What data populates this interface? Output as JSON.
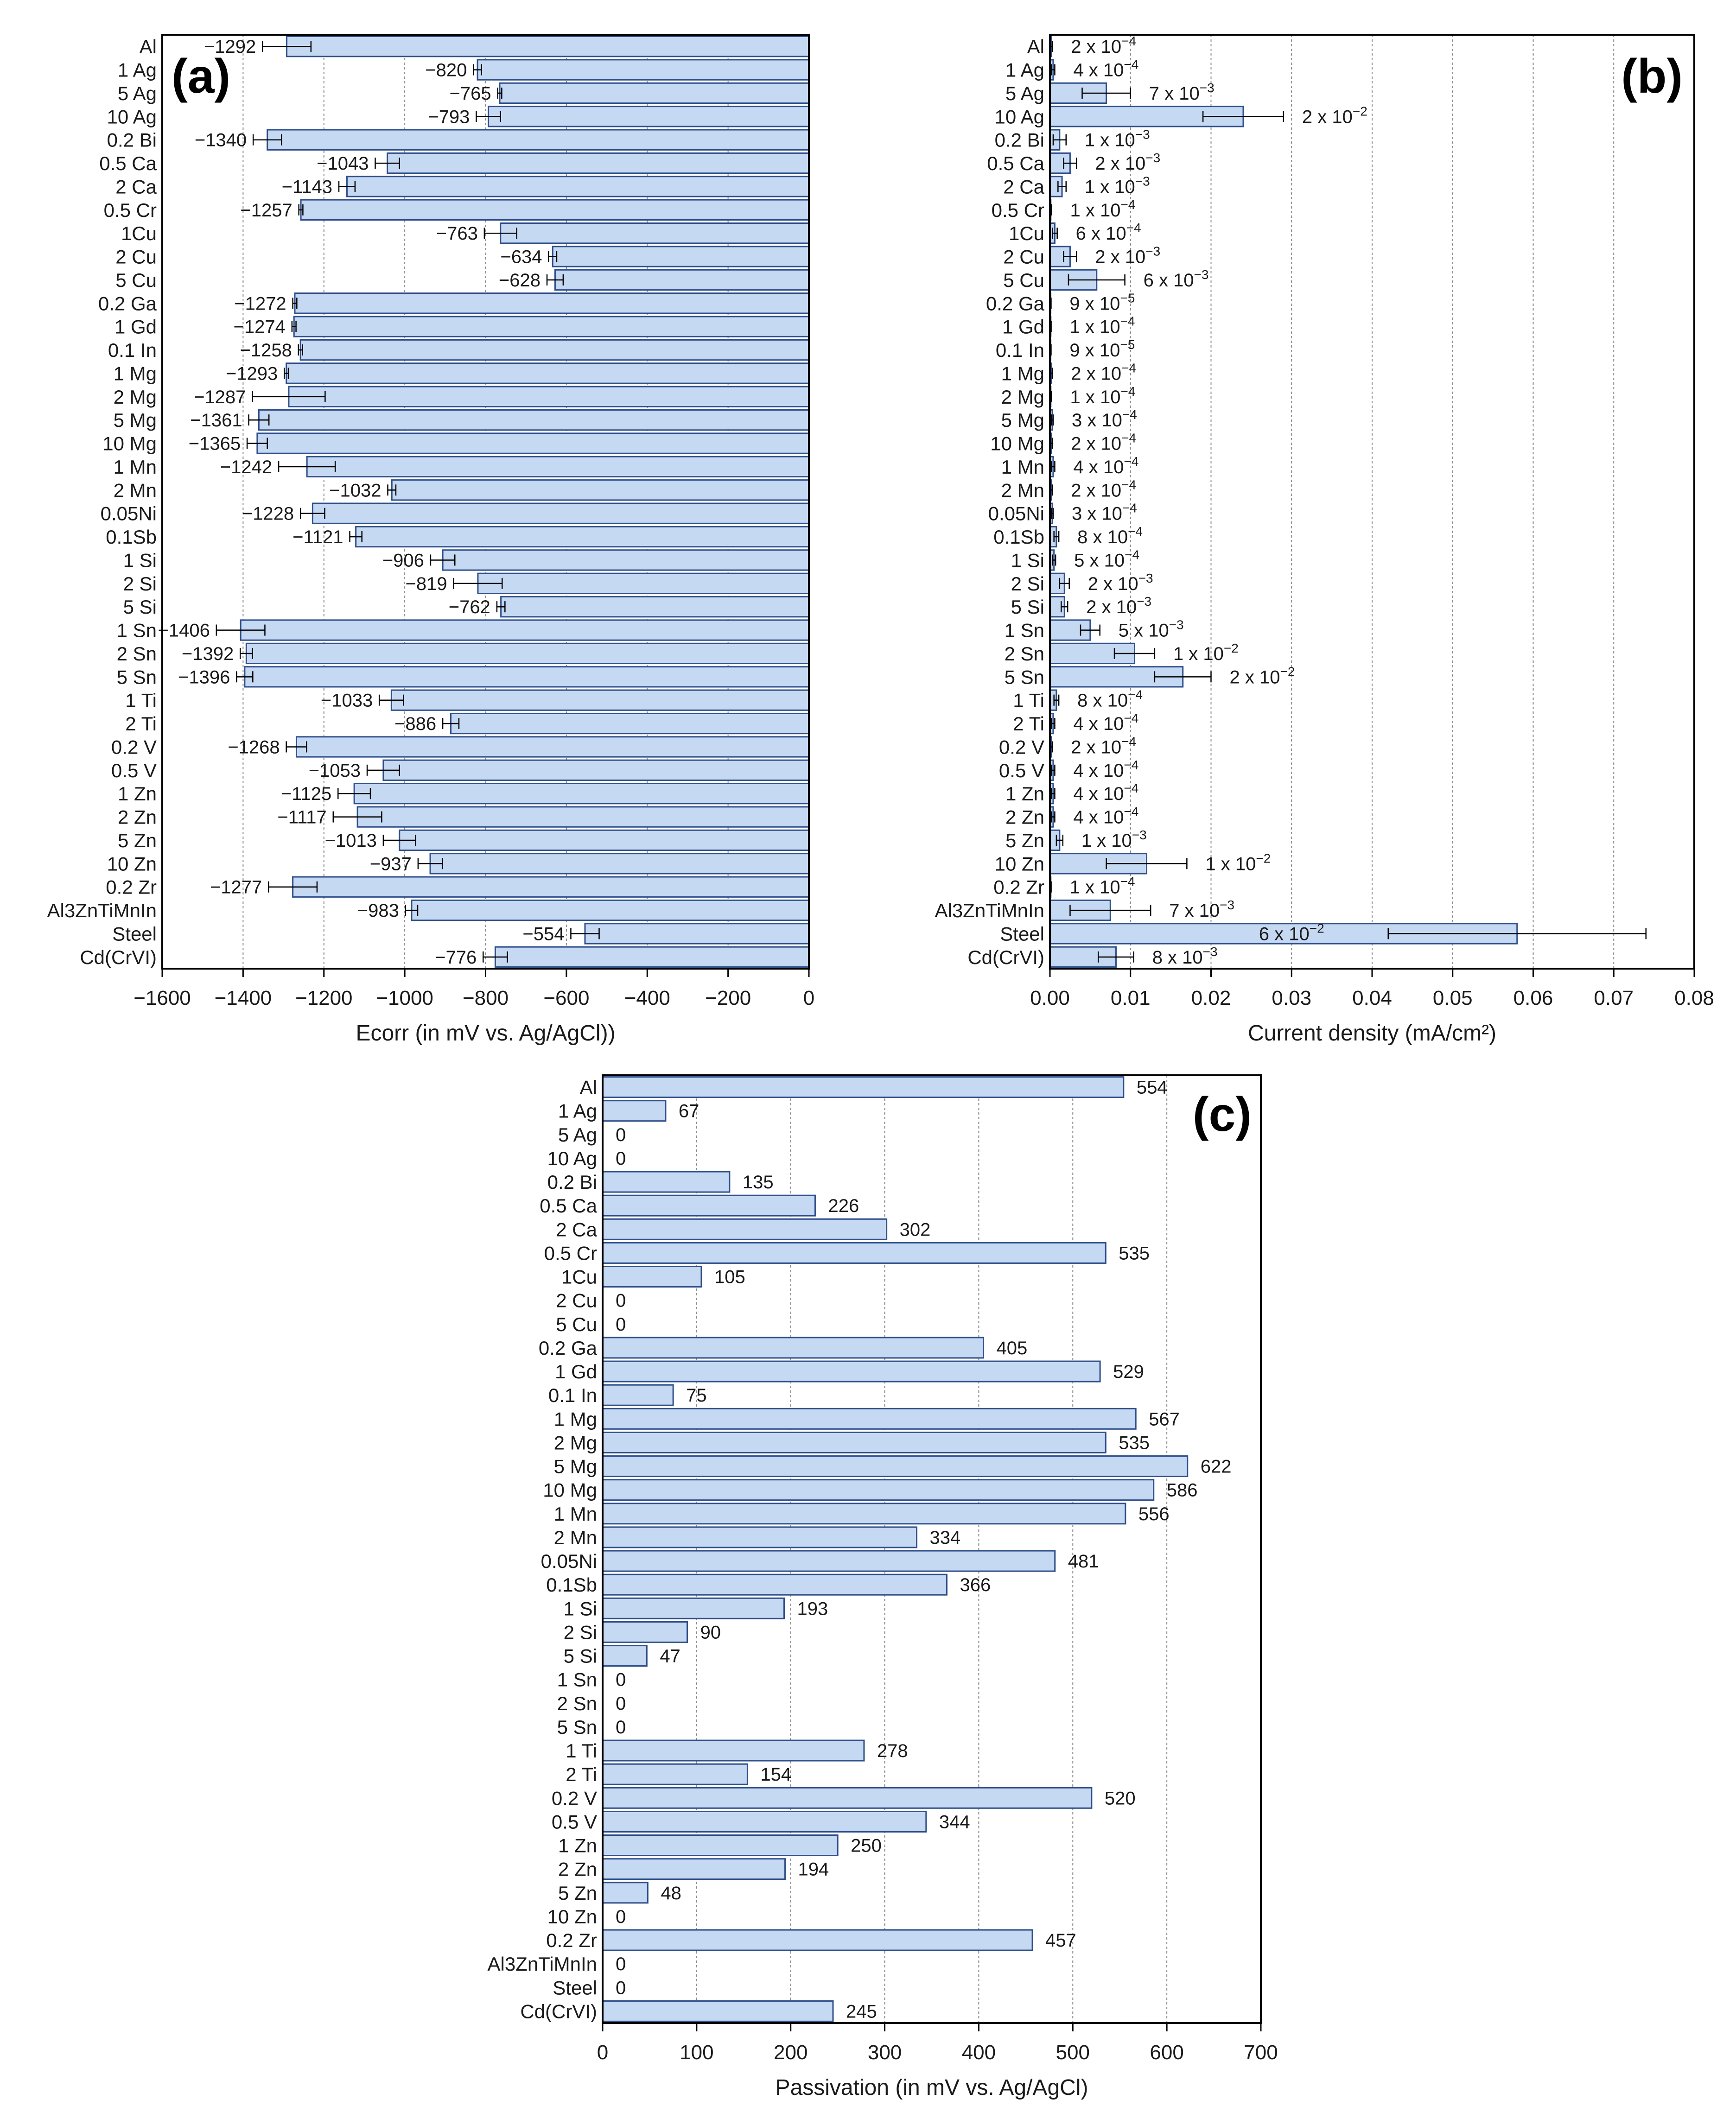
{
  "colors": {
    "bar_fill": "#c6d9f3",
    "bar_stroke": "#2f4f8a",
    "axis": "#000000",
    "grid": "#8a8a8a",
    "text": "#1a1a1a"
  },
  "chart_data": [
    {
      "panel_label": "(a)",
      "type": "bar",
      "orientation": "horizontal",
      "xlabel": "Ecorr (in mV vs. Ag/AgCl))",
      "xlim": [
        -1600,
        0
      ],
      "xticks": [
        -1600,
        -1400,
        -1200,
        -1000,
        -800,
        -600,
        -400,
        -200,
        0
      ],
      "xtick_labels": [
        "−1600",
        "−1400",
        "−1200",
        "−1000",
        "−800",
        "−600",
        "−400",
        "−200",
        "0"
      ],
      "grid": "vertical",
      "categories": [
        "Al",
        "1 Ag",
        "5 Ag",
        "10 Ag",
        "0.2 Bi",
        "0.5 Ca",
        "2 Ca",
        "0.5 Cr",
        "1Cu",
        "2 Cu",
        "5 Cu",
        "0.2 Ga",
        "1 Gd",
        "0.1 In",
        "1 Mg",
        "2 Mg",
        "5 Mg",
        "10 Mg",
        "1 Mn",
        "2 Mn",
        "0.05Ni",
        "0.1Sb",
        "1 Si",
        "2 Si",
        "5 Si",
        "1 Sn",
        "2 Sn",
        "5 Sn",
        "1 Ti",
        "2 Ti",
        "0.2 V",
        "0.5 V",
        "1 Zn",
        "2 Zn",
        "5 Zn",
        "10 Zn",
        "0.2 Zr",
        "Al3ZnTiMnIn",
        "Steel",
        "Cd(CrVI)"
      ],
      "values": [
        -1292,
        -820,
        -765,
        -793,
        -1340,
        -1043,
        -1143,
        -1257,
        -763,
        -634,
        -628,
        -1272,
        -1274,
        -1258,
        -1293,
        -1287,
        -1361,
        -1365,
        -1242,
        -1032,
        -1228,
        -1121,
        -906,
        -819,
        -762,
        -1406,
        -1392,
        -1396,
        -1033,
        -886,
        -1268,
        -1053,
        -1125,
        -1117,
        -1013,
        -937,
        -1277,
        -983,
        -554,
        -776
      ],
      "errors": [
        60,
        10,
        5,
        30,
        35,
        30,
        20,
        5,
        40,
        10,
        20,
        5,
        5,
        5,
        5,
        90,
        25,
        25,
        70,
        10,
        30,
        15,
        30,
        60,
        10,
        60,
        15,
        20,
        30,
        20,
        25,
        40,
        40,
        60,
        40,
        30,
        60,
        15,
        35,
        30
      ],
      "labels": [
        "−1292",
        "−820",
        "−765",
        "−793",
        "−1340",
        "−1043",
        "−1143",
        "−1257",
        "−763",
        "−634",
        "−628",
        "−1272",
        "−1274",
        "−1258",
        "−1293",
        "−1287",
        "−1361",
        "−1365",
        "−1242",
        "−1032",
        "−1228",
        "−1121",
        "−906",
        "−819",
        "−762",
        "−1406",
        "−1392",
        "−1396",
        "−1033",
        "−886",
        "−1268",
        "−1053",
        "−1125",
        "−1117",
        "−1013",
        "−937",
        "−1277",
        "−983",
        "−554",
        "−776"
      ]
    },
    {
      "panel_label": "(b)",
      "type": "bar",
      "orientation": "horizontal",
      "xlabel": "Current density (mA/cm²)",
      "xlim": [
        0,
        0.08
      ],
      "xticks": [
        0,
        0.01,
        0.02,
        0.03,
        0.04,
        0.05,
        0.06,
        0.07,
        0.08
      ],
      "xtick_labels": [
        "0.00",
        "0.01",
        "0.02",
        "0.03",
        "0.04",
        "0.05",
        "0.06",
        "0.07",
        "0.08"
      ],
      "grid": "vertical",
      "categories": [
        "Al",
        "1 Ag",
        "5 Ag",
        "10 Ag",
        "0.2 Bi",
        "0.5 Ca",
        "2 Ca",
        "0.5 Cr",
        "1Cu",
        "2 Cu",
        "5 Cu",
        "0.2 Ga",
        "1 Gd",
        "0.1 In",
        "1 Mg",
        "2 Mg",
        "5 Mg",
        "10 Mg",
        "1 Mn",
        "2 Mn",
        "0.05Ni",
        "0.1Sb",
        "1 Si",
        "2 Si",
        "5 Si",
        "1 Sn",
        "2 Sn",
        "5 Sn",
        "1 Ti",
        "2 Ti",
        "0.2 V",
        "0.5 V",
        "1 Zn",
        "2 Zn",
        "5 Zn",
        "10 Zn",
        "0.2 Zr",
        "Al3ZnTiMnIn",
        "Steel",
        "Cd(CrVI)"
      ],
      "values": [
        0.0002,
        0.0004,
        0.007,
        0.024,
        0.0012,
        0.0025,
        0.0015,
        0.0001,
        0.0006,
        0.0025,
        0.0058,
        9e-05,
        0.0001,
        9e-05,
        0.0002,
        0.0001,
        0.0003,
        0.0002,
        0.0004,
        0.0002,
        0.0003,
        0.0008,
        0.0005,
        0.0018,
        0.0018,
        0.005,
        0.0105,
        0.0165,
        0.0008,
        0.0004,
        0.0002,
        0.0004,
        0.0004,
        0.0004,
        0.0012,
        0.012,
        0.0001,
        0.0075,
        0.058,
        0.0082
      ],
      "errors": [
        0.0001,
        0.0002,
        0.003,
        0.005,
        0.0008,
        0.0008,
        0.0005,
        0.0001,
        0.0003,
        0.0008,
        0.0035,
        5e-05,
        5e-05,
        5e-05,
        0.0001,
        0.0001,
        0.0001,
        0.0001,
        0.0002,
        0.0001,
        0.0001,
        0.0003,
        0.0002,
        0.0006,
        0.0004,
        0.0012,
        0.0025,
        0.0035,
        0.0003,
        0.0002,
        0.0001,
        0.0002,
        0.0002,
        0.0002,
        0.0004,
        0.005,
        5e-05,
        0.005,
        0.016,
        0.0022
      ],
      "label_mantissa": [
        "2 x 10",
        "4 x 10",
        "7 x 10",
        "2 x 10",
        "1 x 10",
        "2 x 10",
        "1 x 10",
        "1 x 10",
        "6 x 10",
        "2 x 10",
        "6 x 10",
        "9 x 10",
        "1 x 10",
        "9 x 10",
        "2 x 10",
        "1 x 10",
        "3 x 10",
        "2 x 10",
        "4 x 10",
        "2 x 10",
        "3 x 10",
        "8 x 10",
        "5 x 10",
        "2 x 10",
        "2 x 10",
        "5 x 10",
        "1 x 10",
        "2 x 10",
        "8 x 10",
        "4 x 10",
        "2 x 10",
        "4 x 10",
        "4 x 10",
        "4 x 10",
        "1 x 10",
        "1 x 10",
        "1 x 10",
        "7 x 10",
        "6 x 10",
        "8 x 10"
      ],
      "label_exponent": [
        "−4",
        "−4",
        "−3",
        "−2",
        "−3",
        "−3",
        "−3",
        "−4",
        "−4",
        "−3",
        "−3",
        "−5",
        "−4",
        "−5",
        "−4",
        "−4",
        "−4",
        "−4",
        "−4",
        "−4",
        "−4",
        "−4",
        "−4",
        "−3",
        "−3",
        "−3",
        "−2",
        "−2",
        "−4",
        "−4",
        "−4",
        "−4",
        "−4",
        "−4",
        "−3",
        "−2",
        "−4",
        "−3",
        "−2",
        "−3"
      ]
    },
    {
      "panel_label": "(c)",
      "type": "bar",
      "orientation": "horizontal",
      "xlabel": "Passivation (in mV vs. Ag/AgCl)",
      "xlim": [
        0,
        700
      ],
      "xticks": [
        0,
        100,
        200,
        300,
        400,
        500,
        600,
        700
      ],
      "xtick_labels": [
        "0",
        "100",
        "200",
        "300",
        "400",
        "500",
        "600",
        "700"
      ],
      "grid": "vertical",
      "categories": [
        "Al",
        "1 Ag",
        "5 Ag",
        "10 Ag",
        "0.2 Bi",
        "0.5 Ca",
        "2 Ca",
        "0.5 Cr",
        "1Cu",
        "2 Cu",
        "5 Cu",
        "0.2 Ga",
        "1 Gd",
        "0.1 In",
        "1 Mg",
        "2 Mg",
        "5 Mg",
        "10 Mg",
        "1 Mn",
        "2 Mn",
        "0.05Ni",
        "0.1Sb",
        "1 Si",
        "2 Si",
        "5 Si",
        "1 Sn",
        "2 Sn",
        "5 Sn",
        "1 Ti",
        "2 Ti",
        "0.2 V",
        "0.5 V",
        "1 Zn",
        "2 Zn",
        "5 Zn",
        "10 Zn",
        "0.2 Zr",
        "Al3ZnTiMnIn",
        "Steel",
        "Cd(CrVI)"
      ],
      "values": [
        554,
        67,
        0,
        0,
        135,
        226,
        302,
        535,
        105,
        0,
        0,
        405,
        529,
        75,
        567,
        535,
        622,
        586,
        556,
        334,
        481,
        366,
        193,
        90,
        47,
        0,
        0,
        0,
        278,
        154,
        520,
        344,
        250,
        194,
        48,
        0,
        457,
        0,
        0,
        245
      ],
      "labels": [
        "554",
        "67",
        "0",
        "0",
        "135",
        "226",
        "302",
        "535",
        "105",
        "0",
        "0",
        "405",
        "529",
        "75",
        "567",
        "535",
        "622",
        "586",
        "556",
        "334",
        "481",
        "366",
        "193",
        "90",
        "47",
        "0",
        "0",
        "0",
        "278",
        "154",
        "520",
        "344",
        "250",
        "194",
        "48",
        "0",
        "457",
        "0",
        "0",
        "245"
      ]
    }
  ]
}
